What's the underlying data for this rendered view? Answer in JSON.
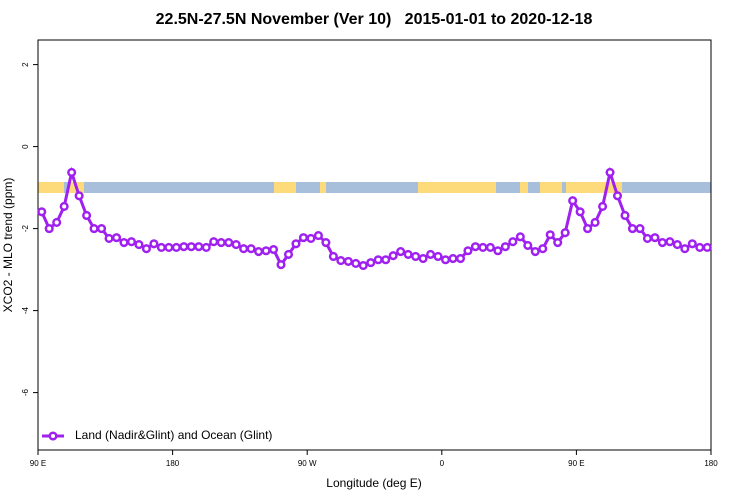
{
  "chart_data": {
    "type": "line",
    "title": "22.5N-27.5N November (Ver 10)   2015-01-01 to 2020-12-18",
    "xlabel": "Longitude (deg E)",
    "ylabel": "XCO2 - MLO trend (ppm)",
    "xlim": [
      90,
      540
    ],
    "ylim": [
      -7.4,
      2.6
    ],
    "xticks": [
      {
        "value": 90,
        "label": "90 E"
      },
      {
        "value": 180,
        "label": "180"
      },
      {
        "value": 270,
        "label": "90 W"
      },
      {
        "value": 360,
        "label": "0"
      },
      {
        "value": 450,
        "label": "90 E"
      },
      {
        "value": 540,
        "label": "180"
      }
    ],
    "yticks": [
      2,
      0,
      -2,
      -4,
      -6
    ],
    "legend": "bottom-left",
    "x": [
      92.5,
      97.5,
      102.5,
      107.5,
      112.5,
      117.5,
      122.5,
      127.5,
      132.5,
      137.5,
      142.5,
      147.5,
      152.5,
      157.5,
      162.5,
      167.5,
      172.5,
      177.5,
      182.5,
      187.5,
      192.5,
      197.5,
      202.5,
      207.5,
      212.5,
      217.5,
      222.5,
      227.5,
      232.5,
      237.5,
      242.5,
      247.5,
      252.5,
      257.5,
      262.5,
      267.5,
      272.5,
      277.5,
      282.5,
      287.5,
      292.5,
      297.5,
      302.5,
      307.5,
      312.5,
      317.5,
      322.5,
      327.5,
      332.5,
      337.5,
      342.5,
      347.5,
      352.5,
      357.5,
      362.5,
      367.5,
      372.5,
      377.5,
      382.5,
      387.5,
      392.5,
      397.5,
      402.5,
      407.5,
      412.5,
      417.5,
      422.5,
      427.5,
      432.5,
      437.5,
      442.5,
      447.5,
      452.5,
      457.5,
      462.5,
      467.5,
      472.5,
      477.5,
      482.5,
      487.5,
      492.5,
      497.5,
      502.5,
      507.5,
      512.5,
      517.5,
      522.5,
      527.5,
      532.5,
      537.5
    ],
    "series": [
      {
        "name": "Land (Nadir&Glint) and Ocean (Glint)",
        "color": "#a020f0",
        "values": [
          -1.59,
          -2.0,
          -1.85,
          -1.46,
          -0.63,
          -1.2,
          -1.68,
          -2.0,
          -2.0,
          -2.24,
          -2.22,
          -2.34,
          -2.32,
          -2.39,
          -2.49,
          -2.37,
          -2.46,
          -2.46,
          -2.46,
          -2.44,
          -2.44,
          -2.44,
          -2.46,
          -2.32,
          -2.34,
          -2.34,
          -2.39,
          -2.49,
          -2.49,
          -2.56,
          -2.54,
          -2.51,
          -2.88,
          -2.63,
          -2.37,
          -2.22,
          -2.24,
          -2.17,
          -2.34,
          -2.68,
          -2.78,
          -2.8,
          -2.85,
          -2.9,
          -2.83,
          -2.76,
          -2.76,
          -2.66,
          -2.56,
          -2.63,
          -2.68,
          -2.73,
          -2.63,
          -2.68,
          -2.76,
          -2.73,
          -2.73,
          -2.54,
          -2.44,
          -2.46,
          -2.46,
          -2.54,
          -2.44,
          -2.32,
          -2.2,
          -2.41,
          -2.56,
          -2.49,
          -2.15,
          -2.34,
          -2.1,
          -1.32,
          -1.59,
          -2.0,
          -1.85,
          -1.46,
          -0.63,
          -1.2,
          -1.68,
          -2.0,
          -2.0,
          -2.24,
          -2.22,
          -2.34,
          -2.32,
          -2.39,
          -2.49,
          -2.37,
          -2.46,
          -2.46
        ]
      }
    ]
  }
}
